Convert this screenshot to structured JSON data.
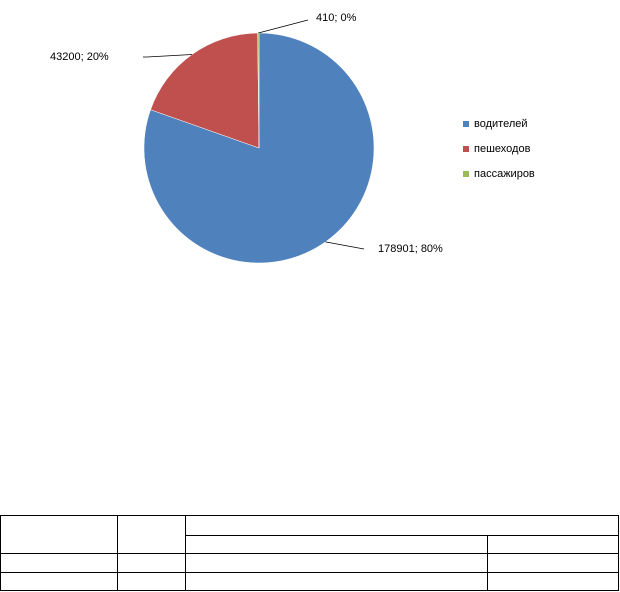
{
  "chart_data": {
    "type": "pie",
    "categories": [
      "водителей",
      "пешеходов",
      "пассажиров"
    ],
    "values": [
      178901,
      43200,
      410
    ],
    "value_labels": [
      "178901; 80%",
      "43200; 20%",
      "410; 0%"
    ],
    "colors": [
      "#4f81bd",
      "#c0504d",
      "#9bbb59"
    ],
    "legend": "right"
  }
}
